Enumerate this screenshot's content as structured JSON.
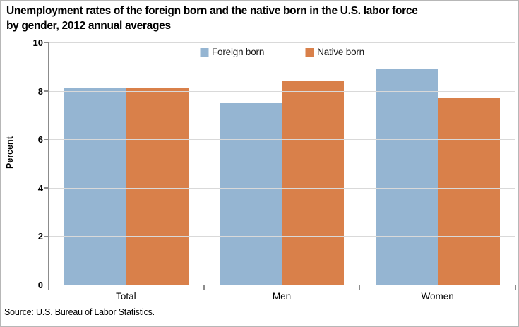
{
  "title": "Unemployment rates of the foreign born and the native born in the U.S. labor force\nby gender, 2012 annual averages",
  "source": "Source: U.S. Bureau of Labor Statistics.",
  "colors": {
    "foreign_born": "#95B5D2",
    "native_born": "#D9804A",
    "gridline": "#D9D9D9",
    "axis": "#8C8C8C"
  },
  "chart_data": {
    "type": "bar",
    "title": "Unemployment rates of the foreign born and the native born in the U.S. labor force by gender, 2012 annual averages",
    "categories": [
      "Total",
      "Men",
      "Women"
    ],
    "series": [
      {
        "name": "Foreign born",
        "color": "#95B5D2",
        "values": [
          8.1,
          7.5,
          8.9
        ]
      },
      {
        "name": "Native born",
        "color": "#D9804A",
        "values": [
          8.1,
          8.4,
          7.7
        ]
      }
    ],
    "xlabel": "",
    "ylabel": "Percent",
    "ylim": [
      0,
      10
    ],
    "yticks": [
      0,
      2,
      4,
      6,
      8,
      10
    ],
    "grid": true,
    "legend_position": "top-center-inside",
    "source": "Source: U.S. Bureau of Labor Statistics."
  }
}
